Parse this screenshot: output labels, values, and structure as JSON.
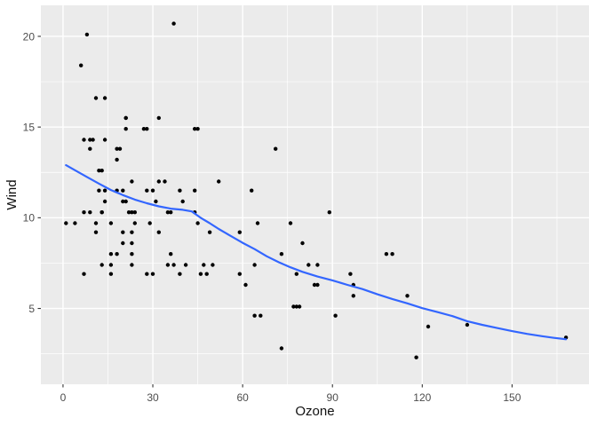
{
  "chart_data": {
    "type": "scatter",
    "title": "",
    "xlabel": "Ozone",
    "ylabel": "Wind",
    "xlim": [
      -7.4,
      175.7
    ],
    "ylim": [
      0.82,
      21.71
    ],
    "x_major_ticks": [
      0,
      30,
      60,
      90,
      120,
      150
    ],
    "x_minor_ticks": [
      15,
      45,
      75,
      105,
      135,
      165
    ],
    "y_major_ticks": [
      5,
      10,
      15,
      20
    ],
    "y_minor_ticks": [
      2.5,
      7.5,
      12.5,
      17.5
    ],
    "grid": true,
    "legend": false,
    "points": [
      [
        41,
        7.4
      ],
      [
        36,
        8
      ],
      [
        12,
        12.6
      ],
      [
        18,
        11.5
      ],
      [
        28,
        14.9
      ],
      [
        23,
        8.6
      ],
      [
        19,
        13.8
      ],
      [
        8,
        20.1
      ],
      [
        7,
        6.9
      ],
      [
        16,
        9.7
      ],
      [
        11,
        9.2
      ],
      [
        14,
        10.9
      ],
      [
        18,
        13.2
      ],
      [
        14,
        11.5
      ],
      [
        34,
        12
      ],
      [
        6,
        18.4
      ],
      [
        30,
        11.5
      ],
      [
        11,
        9.7
      ],
      [
        1,
        9.7
      ],
      [
        11,
        16.6
      ],
      [
        4,
        9.7
      ],
      [
        32,
        12
      ],
      [
        23,
        12
      ],
      [
        45,
        14.9
      ],
      [
        115,
        5.7
      ],
      [
        37,
        7.4
      ],
      [
        29,
        9.7
      ],
      [
        71,
        13.8
      ],
      [
        39,
        11.5
      ],
      [
        23,
        8
      ],
      [
        21,
        14.9
      ],
      [
        37,
        20.7
      ],
      [
        20,
        9.2
      ],
      [
        12,
        11.5
      ],
      [
        13,
        10.3
      ],
      [
        135,
        4.1
      ],
      [
        49,
        9.2
      ],
      [
        32,
        9.2
      ],
      [
        64,
        4.6
      ],
      [
        40,
        10.9
      ],
      [
        77,
        5.1
      ],
      [
        97,
        6.3
      ],
      [
        97,
        5.7
      ],
      [
        85,
        7.4
      ],
      [
        10,
        14.3
      ],
      [
        27,
        14.9
      ],
      [
        7,
        14.3
      ],
      [
        48,
        6.9
      ],
      [
        35,
        10.3
      ],
      [
        61,
        6.3
      ],
      [
        79,
        5.1
      ],
      [
        63,
        11.5
      ],
      [
        16,
        6.9
      ],
      [
        80,
        8.6
      ],
      [
        108,
        8
      ],
      [
        20,
        8.6
      ],
      [
        52,
        12
      ],
      [
        82,
        7.4
      ],
      [
        50,
        7.4
      ],
      [
        64,
        7.4
      ],
      [
        59,
        9.2
      ],
      [
        39,
        6.9
      ],
      [
        9,
        13.8
      ],
      [
        16,
        7.4
      ],
      [
        78,
        6.9
      ],
      [
        35,
        7.4
      ],
      [
        66,
        4.6
      ],
      [
        122,
        4
      ],
      [
        89,
        10.3
      ],
      [
        110,
        8
      ],
      [
        44,
        11.5
      ],
      [
        28,
        11.5
      ],
      [
        65,
        9.7
      ],
      [
        22,
        10.3
      ],
      [
        59,
        6.9
      ],
      [
        23,
        7.4
      ],
      [
        31,
        10.9
      ],
      [
        44,
        10.3
      ],
      [
        21,
        15.5
      ],
      [
        9,
        14.3
      ],
      [
        45,
        9.7
      ],
      [
        168,
        3.4
      ],
      [
        73,
        8
      ],
      [
        76,
        9.7
      ],
      [
        118,
        2.3
      ],
      [
        84,
        6.3
      ],
      [
        85,
        6.3
      ],
      [
        96,
        6.9
      ],
      [
        78,
        5.1
      ],
      [
        73,
        2.8
      ],
      [
        91,
        4.6
      ],
      [
        47,
        7.4
      ],
      [
        32,
        15.5
      ],
      [
        20,
        10.9
      ],
      [
        23,
        10.3
      ],
      [
        21,
        10.9
      ],
      [
        24,
        9.7
      ],
      [
        44,
        14.9
      ],
      [
        21,
        15.5
      ],
      [
        28,
        6.9
      ],
      [
        9,
        10.3
      ],
      [
        13,
        7.4
      ],
      [
        46,
        6.9
      ],
      [
        18,
        13.8
      ],
      [
        13,
        10.3
      ],
      [
        24,
        10.3
      ],
      [
        16,
        8
      ],
      [
        13,
        12.6
      ],
      [
        23,
        9.2
      ],
      [
        36,
        10.3
      ],
      [
        7,
        10.3
      ],
      [
        14,
        16.6
      ],
      [
        30,
        6.9
      ],
      [
        14,
        14.3
      ],
      [
        18,
        8
      ],
      [
        20,
        11.5
      ]
    ],
    "smooth_line": {
      "name": "loess-smooth",
      "points": [
        [
          1,
          12.9
        ],
        [
          4,
          12.62
        ],
        [
          8,
          12.25
        ],
        [
          12,
          11.88
        ],
        [
          16,
          11.53
        ],
        [
          20,
          11.25
        ],
        [
          24,
          11.0
        ],
        [
          28,
          10.8
        ],
        [
          32,
          10.63
        ],
        [
          36,
          10.5
        ],
        [
          40,
          10.44
        ],
        [
          43,
          10.35
        ],
        [
          46,
          10.0
        ],
        [
          49,
          9.7
        ],
        [
          52,
          9.38
        ],
        [
          56,
          9.0
        ],
        [
          60,
          8.62
        ],
        [
          64,
          8.27
        ],
        [
          68,
          7.88
        ],
        [
          72,
          7.55
        ],
        [
          76,
          7.27
        ],
        [
          80,
          7.02
        ],
        [
          85,
          6.76
        ],
        [
          90,
          6.55
        ],
        [
          95,
          6.3
        ],
        [
          100,
          6.07
        ],
        [
          105,
          5.78
        ],
        [
          110,
          5.52
        ],
        [
          115,
          5.28
        ],
        [
          120,
          5.02
        ],
        [
          125,
          4.8
        ],
        [
          130,
          4.58
        ],
        [
          135,
          4.3
        ],
        [
          140,
          4.1
        ],
        [
          145,
          3.92
        ],
        [
          150,
          3.75
        ],
        [
          155,
          3.6
        ],
        [
          160,
          3.47
        ],
        [
          164,
          3.38
        ],
        [
          168,
          3.3
        ]
      ]
    },
    "colors": {
      "panel_background": "#EBEBEB",
      "gridline": "#FFFFFF",
      "point": "#000000",
      "smooth_line": "#3366FF",
      "tick_label": "#4D4D4D",
      "axis_title": "#111111",
      "tick_mark": "#333333"
    }
  }
}
